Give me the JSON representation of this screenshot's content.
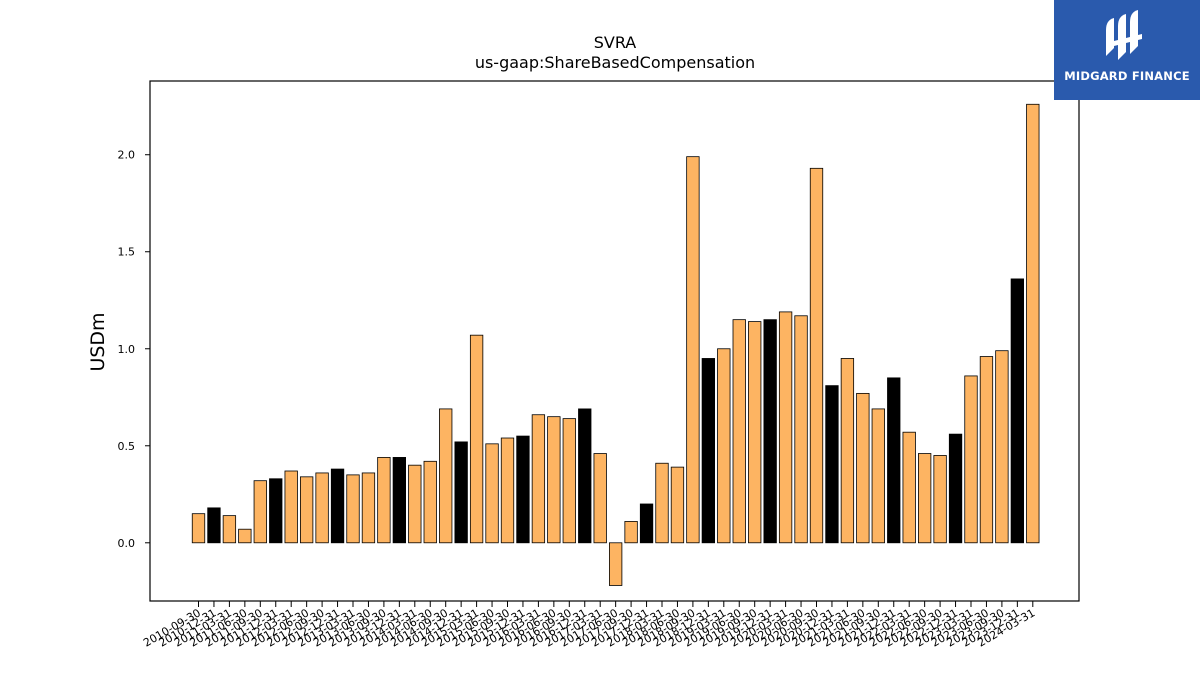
{
  "chart_data": {
    "type": "bar",
    "title": "SVRA",
    "subtitle": "us-gaap:ShareBasedCompensation",
    "xlabel": "",
    "ylabel": "USDm",
    "ylim": [
      -0.3,
      2.38
    ],
    "yticks": [
      0.0,
      0.5,
      1.0,
      1.5,
      2.0
    ],
    "grid": false,
    "colors": {
      "default": "#fdb462",
      "highlight": "#000000",
      "edge": "#000000"
    },
    "categories": [
      "2010-09-30",
      "2010-12-31",
      "2011-03-31",
      "2011-06-30",
      "2011-09-30",
      "2011-12-31",
      "2012-03-31",
      "2012-06-30",
      "2012-09-30",
      "2012-12-31",
      "2013-03-31",
      "2013-06-30",
      "2013-09-30",
      "2013-12-31",
      "2014-03-31",
      "2014-06-30",
      "2014-09-30",
      "2014-12-31",
      "2015-03-31",
      "2015-06-30",
      "2015-09-30",
      "2015-12-31",
      "2016-03-31",
      "2016-06-30",
      "2016-09-30",
      "2016-12-31",
      "2017-03-31",
      "2017-06-30",
      "2017-09-30",
      "2017-12-31",
      "2018-03-31",
      "2018-06-30",
      "2018-09-30",
      "2018-12-31",
      "2019-03-31",
      "2019-06-30",
      "2019-09-30",
      "2019-12-31",
      "2020-03-31",
      "2020-06-30",
      "2020-09-30",
      "2020-12-31",
      "2021-03-31",
      "2021-06-30",
      "2021-09-30",
      "2021-12-31",
      "2022-03-31",
      "2022-06-30",
      "2022-09-30",
      "2022-12-31",
      "2023-03-31",
      "2023-06-30",
      "2023-09-30",
      "2023-12-31",
      "2024-03-31"
    ],
    "values": [
      0.15,
      0.18,
      0.14,
      0.07,
      0.32,
      0.33,
      0.37,
      0.34,
      0.36,
      0.38,
      0.35,
      0.36,
      0.44,
      0.44,
      0.4,
      0.42,
      0.69,
      0.52,
      1.07,
      0.51,
      0.54,
      0.55,
      0.66,
      0.65,
      0.64,
      0.69,
      0.46,
      -0.22,
      0.11,
      0.2,
      0.41,
      0.39,
      1.99,
      0.95,
      1.0,
      1.15,
      1.14,
      1.15,
      1.19,
      1.17,
      1.93,
      0.81,
      0.95,
      0.77,
      0.69,
      0.85,
      0.57,
      0.46,
      0.45,
      0.56,
      0.86,
      0.96,
      0.99,
      1.36,
      2.26
    ],
    "highlighted": [
      1,
      5,
      9,
      13,
      17,
      21,
      25,
      29,
      33,
      37,
      41,
      45,
      49,
      53
    ]
  },
  "logo": {
    "name": "midgard-logo",
    "text": "MIDGARD FINANCE"
  }
}
